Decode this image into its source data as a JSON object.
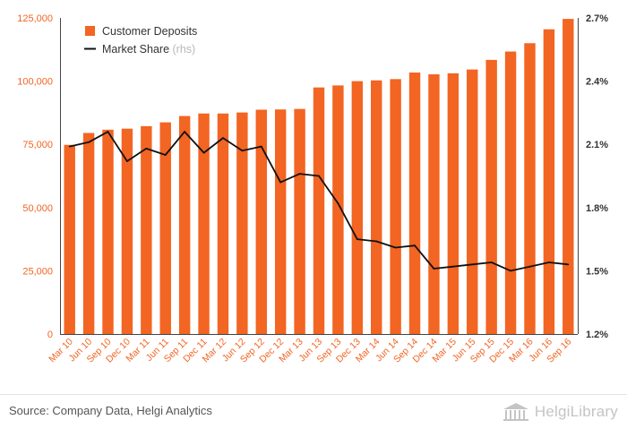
{
  "chart_data": {
    "type": "bar",
    "categories": [
      "Mar 10",
      "Jun 10",
      "Sep 10",
      "Dec 10",
      "Mar 11",
      "Jun 11",
      "Sep 11",
      "Dec 11",
      "Mar 12",
      "Jun 12",
      "Sep 12",
      "Dec 12",
      "Mar 13",
      "Jun 13",
      "Sep 13",
      "Dec 13",
      "Mar 14",
      "Jun 14",
      "Sep 14",
      "Dec 14",
      "Mar 15",
      "Jun 15",
      "Sep 15",
      "Dec 15",
      "Mar 16",
      "Jun 16",
      "Sep 16"
    ],
    "series": [
      {
        "name": "Customer Deposits",
        "type": "bar",
        "axis": "left",
        "color": "#f26522",
        "values": [
          74800,
          79500,
          80800,
          81200,
          82200,
          83700,
          86200,
          87200,
          87200,
          87600,
          88700,
          88800,
          89000,
          97500,
          98300,
          100000,
          100300,
          100800,
          103400,
          102700,
          103100,
          104600,
          108400,
          111700,
          115000,
          120500,
          124600
        ]
      },
      {
        "name": "Market Share",
        "type": "line",
        "axis": "right",
        "color": "#111111",
        "values": [
          2.09,
          2.11,
          2.16,
          2.02,
          2.08,
          2.05,
          2.16,
          2.06,
          2.13,
          2.07,
          2.09,
          1.92,
          1.96,
          1.95,
          1.82,
          1.65,
          1.64,
          1.61,
          1.62,
          1.51,
          1.52,
          1.53,
          1.54,
          1.5,
          1.52,
          1.54,
          1.53
        ]
      }
    ],
    "legend": [
      {
        "label": "Customer Deposits",
        "note": "",
        "color": "#f26522",
        "kind": "bar"
      },
      {
        "label": "Market Share",
        "note": "(rhs)",
        "color": "#111111",
        "kind": "line"
      }
    ],
    "legend_position": "top-left",
    "ylim": [
      0,
      125000
    ],
    "yticks": [
      "0",
      "25,000",
      "50,000",
      "75,000",
      "100,000",
      "125,000"
    ],
    "yticks_values": [
      0,
      25000,
      50000,
      75000,
      100000,
      125000
    ],
    "y2lim": [
      1.2,
      2.7
    ],
    "y2ticks": [
      "1.2%",
      "1.5%",
      "1.8%",
      "2.1%",
      "2.4%",
      "2.7%"
    ],
    "y2ticks_values": [
      1.2,
      1.5,
      1.8,
      2.1,
      2.4,
      2.7
    ],
    "grid": false
  },
  "footer": {
    "source": "Source: Company Data, Helgi Analytics",
    "brand": "HelgiLibrary"
  }
}
